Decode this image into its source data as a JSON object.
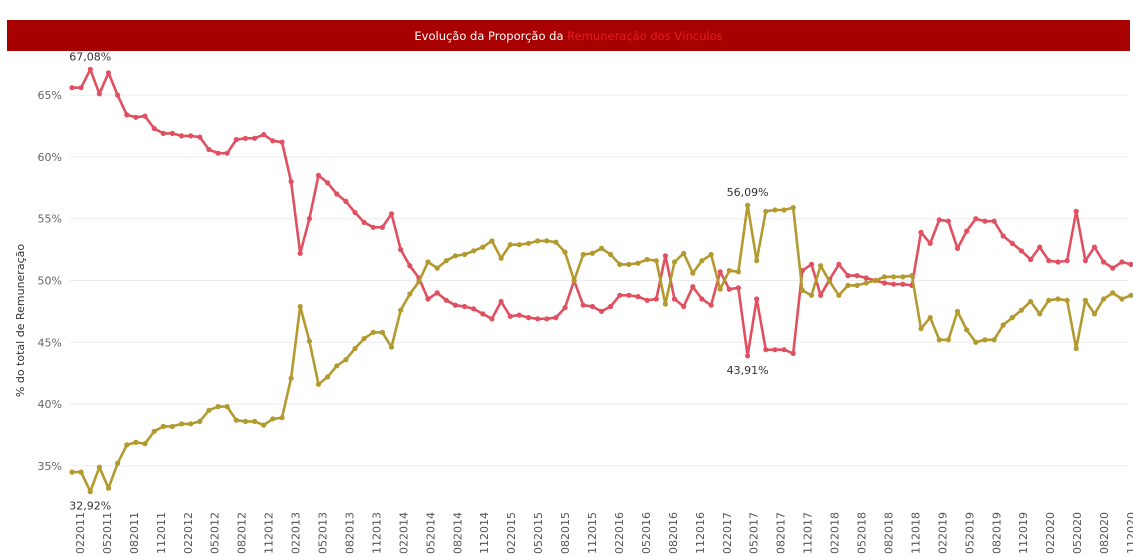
{
  "title": {
    "prefix": "Evolução da Proporção da",
    "highlight": "Remuneração dos Vínculos"
  },
  "colors": {
    "title_bg": "#a80000",
    "series_red": "#e05060",
    "series_olive": "#b39a2e",
    "grid": "#ececec"
  },
  "chart_data": {
    "type": "line",
    "title": "Evolução da Proporção da Remuneração dos Vínculos",
    "ylabel": "% do total de Remuneração",
    "xlabel": "",
    "ylim": [
      32,
      68
    ],
    "yticks": [
      "35%",
      "40%",
      "45%",
      "50%",
      "55%",
      "60%",
      "65%"
    ],
    "ytick_values": [
      35,
      40,
      45,
      50,
      55,
      60,
      65
    ],
    "x_tick_labels": [
      "022011",
      "052011",
      "082011",
      "112011",
      "022012",
      "052012",
      "082012",
      "112012",
      "022013",
      "052013",
      "082013",
      "112013",
      "022014",
      "052014",
      "082014",
      "112014",
      "022015",
      "052015",
      "082015",
      "112015",
      "022016",
      "052016",
      "082016",
      "112016",
      "022017",
      "052017",
      "082017",
      "112017",
      "022018",
      "052018",
      "082018",
      "112018",
      "022019",
      "052019",
      "082019",
      "112019",
      "022020",
      "052020",
      "082020",
      "112020"
    ],
    "grid": true,
    "legend": "none",
    "series": [
      {
        "color": "#e05060",
        "values": [
          65.6,
          65.6,
          67.08,
          65.1,
          66.8,
          65.0,
          63.4,
          63.2,
          63.3,
          62.3,
          61.9,
          61.9,
          61.7,
          61.7,
          61.6,
          60.6,
          60.3,
          60.3,
          61.4,
          61.5,
          61.5,
          61.8,
          61.3,
          61.2,
          58.0,
          52.2,
          55.0,
          58.5,
          57.9,
          57.0,
          56.4,
          55.5,
          54.7,
          54.3,
          54.3,
          55.4,
          52.5,
          51.2,
          50.2,
          48.5,
          49.0,
          48.4,
          48.0,
          47.9,
          47.7,
          47.3,
          46.9,
          48.3,
          47.1,
          47.2,
          47.0,
          46.9,
          46.9,
          47.0,
          47.8,
          50.0,
          48.0,
          47.9,
          47.5,
          47.9,
          48.8,
          48.8,
          48.7,
          48.4,
          48.5,
          52.0,
          48.5,
          47.9,
          49.5,
          48.5,
          48.0,
          50.7,
          49.3,
          49.4,
          43.91,
          48.5,
          44.4,
          44.4,
          44.4,
          44.1,
          50.8,
          51.3,
          48.8,
          50.1,
          51.3,
          50.4,
          50.4,
          50.2,
          50.0,
          49.8,
          49.7,
          49.7,
          49.6,
          53.9,
          53.0,
          54.9,
          54.8,
          52.6,
          54.0,
          55.0,
          54.8,
          54.8,
          53.6,
          53.0,
          52.4,
          51.7,
          52.7,
          51.6,
          51.5,
          51.6,
          55.6,
          51.6,
          52.7,
          51.5,
          51.0,
          51.5,
          51.3
        ]
      },
      {
        "color": "#b39a2e",
        "values": [
          34.5,
          34.5,
          32.92,
          34.9,
          33.2,
          35.2,
          36.7,
          36.9,
          36.8,
          37.8,
          38.2,
          38.2,
          38.4,
          38.4,
          38.6,
          39.5,
          39.8,
          39.8,
          38.7,
          38.6,
          38.6,
          38.3,
          38.8,
          38.9,
          42.1,
          47.9,
          45.1,
          41.6,
          42.2,
          43.1,
          43.6,
          44.5,
          45.3,
          45.8,
          45.8,
          44.6,
          47.6,
          48.9,
          49.9,
          51.5,
          51.0,
          51.6,
          52.0,
          52.1,
          52.4,
          52.7,
          53.2,
          51.8,
          52.9,
          52.9,
          53.0,
          53.2,
          53.2,
          53.1,
          52.3,
          50.0,
          52.1,
          52.2,
          52.6,
          52.1,
          51.3,
          51.3,
          51.4,
          51.7,
          51.6,
          48.1,
          51.5,
          52.2,
          50.6,
          51.6,
          52.1,
          49.3,
          50.8,
          50.7,
          56.09,
          51.6,
          55.6,
          55.7,
          55.7,
          55.9,
          49.2,
          48.8,
          51.2,
          49.9,
          48.8,
          49.6,
          49.6,
          49.8,
          50.0,
          50.3,
          50.3,
          50.3,
          50.4,
          46.1,
          47.0,
          45.2,
          45.2,
          47.5,
          46.0,
          45.0,
          45.2,
          45.2,
          46.4,
          47.0,
          47.6,
          48.3,
          47.3,
          48.4,
          48.5,
          48.4,
          44.5,
          48.4,
          47.3,
          48.5,
          49.0,
          48.5,
          48.8
        ]
      }
    ],
    "annotations": [
      {
        "text": "67,08%",
        "series": 0,
        "index": 2,
        "position": "above"
      },
      {
        "text": "32,92%",
        "series": 1,
        "index": 2,
        "position": "below"
      },
      {
        "text": "56,09%",
        "series": 1,
        "index": 74,
        "position": "above"
      },
      {
        "text": "43,91%",
        "series": 0,
        "index": 74,
        "position": "below"
      }
    ]
  }
}
